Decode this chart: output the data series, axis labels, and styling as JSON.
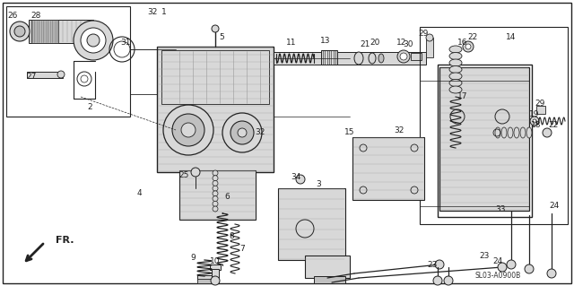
{
  "bg_color": "#ffffff",
  "diagram_code": "SL03-A0900B",
  "fr_label": "FR.",
  "line_color": "#222222",
  "gray_fill": "#c0c0c0",
  "light_gray": "#d8d8d8",
  "dark_gray": "#888888"
}
